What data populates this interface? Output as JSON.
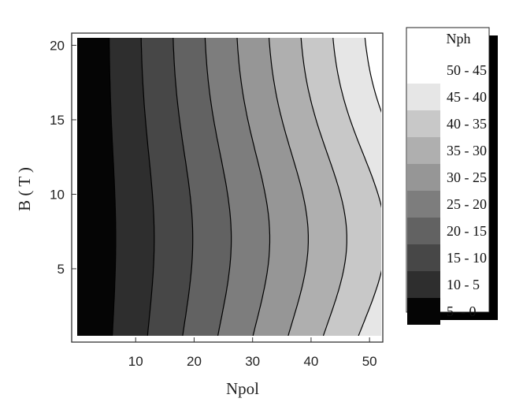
{
  "chart_data": {
    "type": "contour",
    "xlabel": "Npol",
    "ylabel": "B ( T )",
    "xlim": [
      0,
      52
    ],
    "ylim": [
      0.5,
      20.5
    ],
    "x_ticks": [
      10,
      20,
      30,
      40,
      50
    ],
    "y_ticks": [
      5,
      10,
      15,
      20
    ],
    "x_tick_labels": [
      "10",
      "20",
      "30",
      "40",
      "50"
    ],
    "y_tick_labels": [
      "5",
      "10",
      "15",
      "20"
    ],
    "legend": {
      "title": "Nph",
      "placement": "right",
      "levels": [
        {
          "label": "50 - 45",
          "color": "#ffffff"
        },
        {
          "label": "45 - 40",
          "color": "#e6e6e6"
        },
        {
          "label": "40 - 35",
          "color": "#c8c8c8"
        },
        {
          "label": "35 - 30",
          "color": "#afafaf"
        },
        {
          "label": "30 - 25",
          "color": "#969696"
        },
        {
          "label": "25 - 20",
          "color": "#7d7d7d"
        },
        {
          "label": "20 - 15",
          "color": "#626262"
        },
        {
          "label": "15 - 10",
          "color": "#474747"
        },
        {
          "label": "10 - 5",
          "color": "#2e2e2e"
        },
        {
          "label": "5  - 0",
          "color": "#050505"
        }
      ]
    },
    "contour_levels": [
      5,
      10,
      15,
      20,
      25,
      30,
      35,
      40,
      45
    ],
    "contour_shape": {
      "base_npol_per_nph": 1.08,
      "bulge_factor": 0.22,
      "bulge_center_B": 7,
      "bulge_width_B": 8
    },
    "grid": false
  }
}
